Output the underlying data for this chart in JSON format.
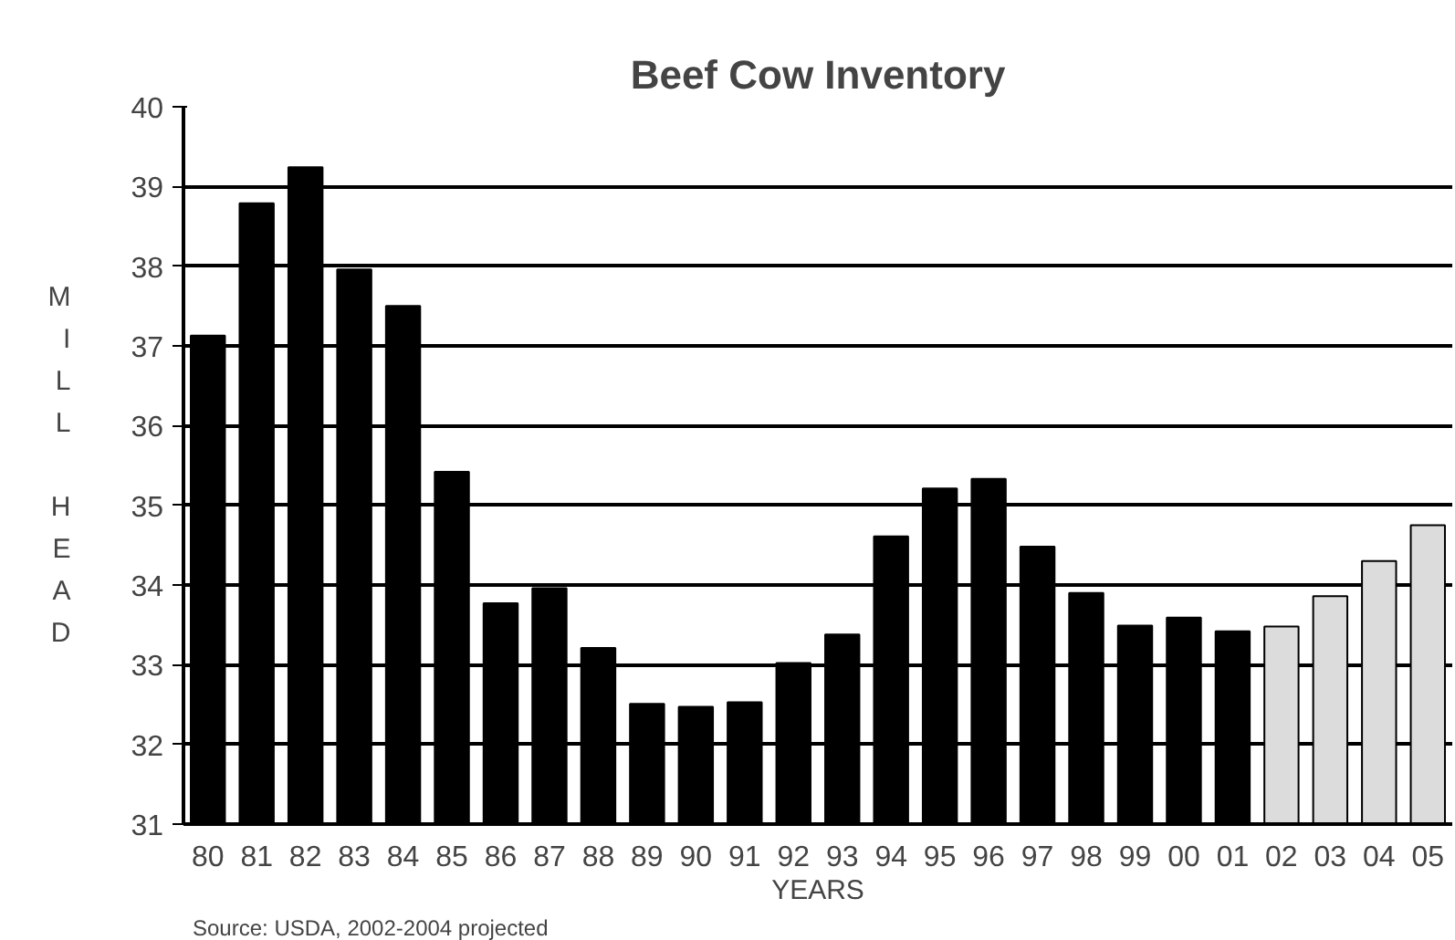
{
  "chart_data": {
    "type": "bar",
    "title": "Beef Cow Inventory",
    "xlabel": "YEARS",
    "ylabel": "MILL HEAD",
    "categories": [
      "80",
      "81",
      "82",
      "83",
      "84",
      "85",
      "86",
      "87",
      "88",
      "89",
      "90",
      "91",
      "92",
      "93",
      "94",
      "95",
      "96",
      "97",
      "98",
      "99",
      "00",
      "01",
      "02",
      "03",
      "04",
      "05"
    ],
    "values": [
      37.13,
      38.79,
      39.24,
      37.96,
      37.5,
      35.42,
      33.77,
      33.96,
      33.21,
      32.51,
      32.47,
      32.53,
      33.02,
      33.38,
      34.61,
      35.21,
      35.33,
      34.48,
      33.9,
      33.49,
      33.59,
      33.42,
      33.48,
      33.86,
      34.3,
      34.75
    ],
    "colors": [
      "#000000",
      "#000000",
      "#000000",
      "#000000",
      "#000000",
      "#000000",
      "#000000",
      "#000000",
      "#000000",
      "#000000",
      "#000000",
      "#000000",
      "#000000",
      "#000000",
      "#000000",
      "#000000",
      "#000000",
      "#000000",
      "#000000",
      "#000000",
      "#000000",
      "#000000",
      "#dcdcdc",
      "#dcdcdc",
      "#dcdcdc",
      "#dcdcdc"
    ],
    "ylim": [
      31,
      40
    ],
    "yticks": [
      31,
      32,
      33,
      34,
      35,
      36,
      37,
      38,
      39,
      40
    ],
    "grid": "y",
    "annotations": [
      "Source:  USDA,   2002-2004 projected"
    ]
  }
}
